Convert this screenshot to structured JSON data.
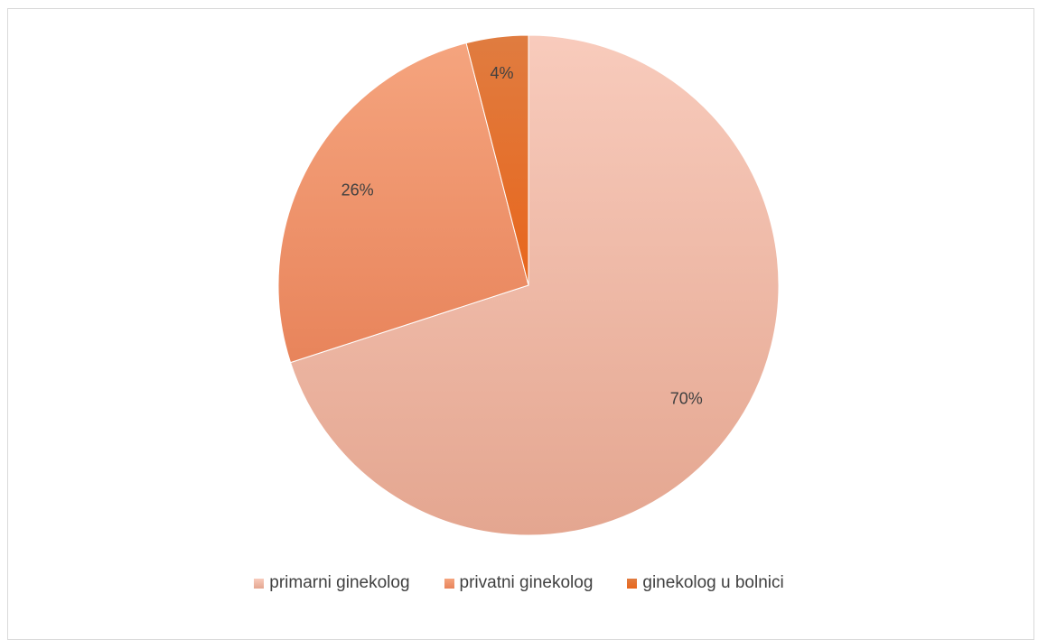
{
  "chart_data": {
    "type": "pie",
    "title": "",
    "slices": [
      {
        "name": "primarni ginekolog",
        "value": 70,
        "label": "70%",
        "color": "#f4b5a0"
      },
      {
        "name": "privatni ginekolog",
        "value": 26,
        "label": "26%",
        "color": "#ee9168"
      },
      {
        "name": "ginekolog u bolnici",
        "value": 4,
        "label": "4%",
        "color": "#e56c25"
      }
    ],
    "legend_position": "bottom"
  },
  "legend": {
    "items": [
      {
        "label": "primarni ginekolog",
        "color": "#f4b5a0"
      },
      {
        "label": "privatni ginekolog",
        "color": "#ee9168"
      },
      {
        "label": "ginekolog u bolnici",
        "color": "#e56c25"
      }
    ]
  }
}
